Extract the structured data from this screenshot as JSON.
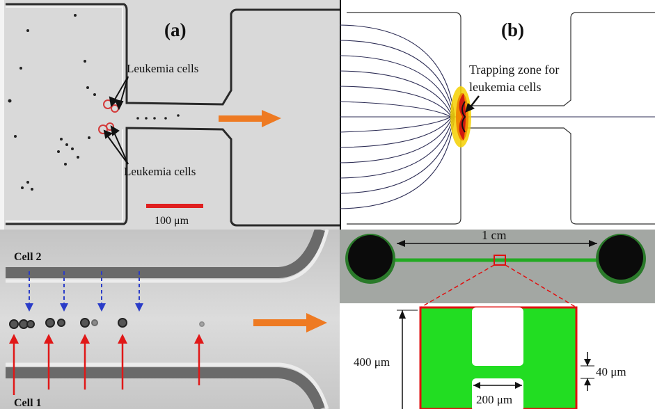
{
  "panel_a": {
    "letter": "(a)",
    "label_upper": "Leukemia cells",
    "label_lower": "Leukemia cells",
    "scale_bar": "100 μm",
    "colors": {
      "background": "#dadada",
      "circle": "#d43a3a",
      "arrow": "#ee7a22",
      "scale": "#e02020"
    }
  },
  "panel_b": {
    "letter": "(b)",
    "trap_label_line1": "Trapping zone for",
    "trap_label_line2": "leukemia cells",
    "colors": {
      "streamline": "#2d2d55",
      "hot": "#d11a10",
      "warm": "#f5b800"
    }
  },
  "panel_c": {
    "cell2_label": "Cell 2",
    "cell1_label": "Cell 1",
    "colors": {
      "blue_arrow": "#2a3cc8",
      "red_arrow": "#e01818",
      "flow_arrow": "#ee7a22"
    }
  },
  "panel_d": {
    "length_label": "1 cm",
    "height_label": "400 μm",
    "gap_label": "40 μm",
    "width_label": "200 μm",
    "colors": {
      "channel": "#22dd22",
      "outline": "#e01010",
      "chip": "#a8aca8"
    }
  }
}
